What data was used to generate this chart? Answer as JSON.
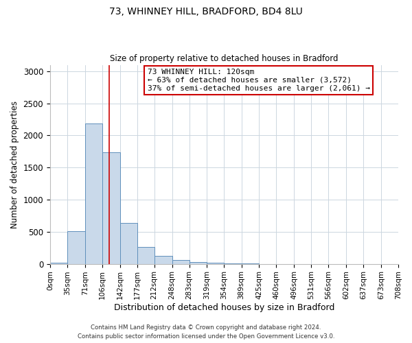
{
  "title1": "73, WHINNEY HILL, BRADFORD, BD4 8LU",
  "title2": "Size of property relative to detached houses in Bradford",
  "xlabel": "Distribution of detached houses by size in Bradford",
  "ylabel": "Number of detached properties",
  "bin_edges": [
    0,
    35,
    71,
    106,
    142,
    177,
    212,
    248,
    283,
    319,
    354,
    389,
    425,
    460,
    496,
    531,
    566,
    602,
    637,
    673,
    708
  ],
  "bar_heights": [
    20,
    510,
    2190,
    1740,
    635,
    260,
    120,
    65,
    25,
    15,
    5,
    2,
    1,
    0,
    0,
    0,
    0,
    0,
    0,
    0
  ],
  "bar_color": "#c9d9ea",
  "bar_edge_color": "#5f8fbb",
  "vline_x": 120,
  "vline_color": "#cc0000",
  "annotation_text": "73 WHINNEY HILL: 120sqm\n← 63% of detached houses are smaller (3,572)\n37% of semi-detached houses are larger (2,061) →",
  "annotation_box_color": "#ffffff",
  "annotation_box_edge": "#cc0000",
  "ylim": [
    0,
    3100
  ],
  "yticks": [
    0,
    500,
    1000,
    1500,
    2000,
    2500,
    3000
  ],
  "footer1": "Contains HM Land Registry data © Crown copyright and database right 2024.",
  "footer2": "Contains public sector information licensed under the Open Government Licence v3.0.",
  "background_color": "#ffffff",
  "grid_color": "#ccd6e0"
}
